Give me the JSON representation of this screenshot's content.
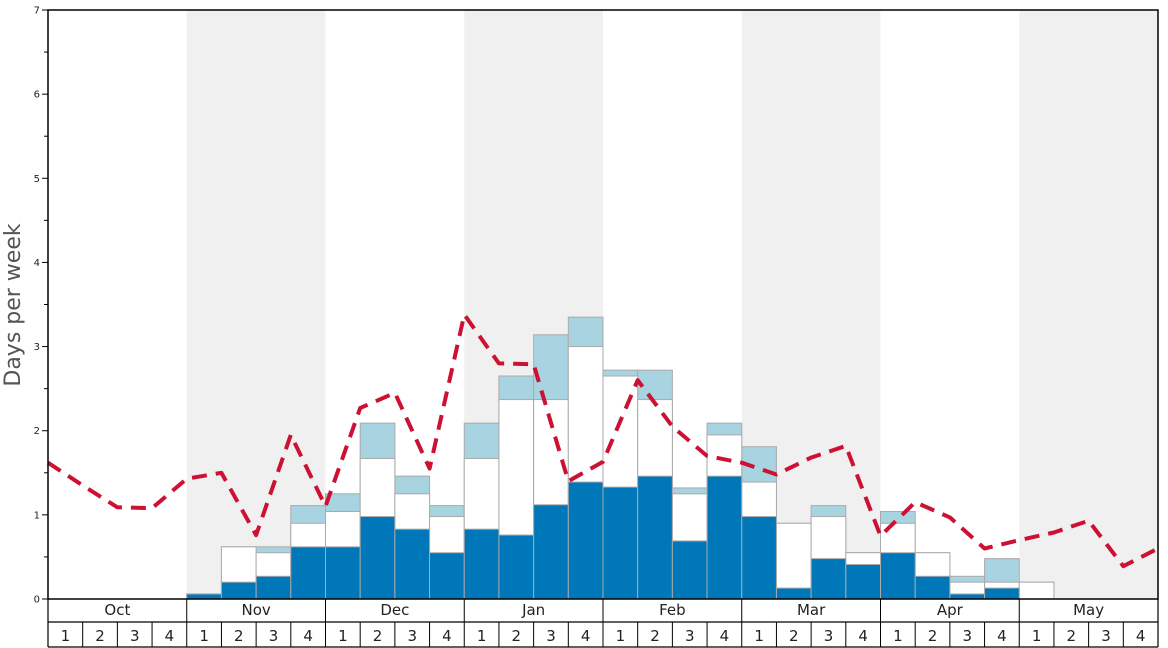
{
  "chart_data": {
    "type": "bar",
    "ylabel": "Days per week",
    "ylim": [
      0,
      7
    ],
    "yticks": [
      0,
      1,
      2,
      3,
      4,
      5,
      6,
      7
    ],
    "months": [
      "Oct",
      "Nov",
      "Dec",
      "Jan",
      "Feb",
      "Mar",
      "Apr",
      "May"
    ],
    "week_labels": [
      "1",
      "2",
      "3",
      "4"
    ],
    "shaded_months": [
      "Nov",
      "Jan",
      "Mar",
      "May"
    ],
    "colors": {
      "bottom": "#0077b8",
      "middle": "#ffffff",
      "top": "#a8d3e0",
      "line": "#cc1133",
      "band": "#f0f0f0",
      "bar_edge": "#aaaaaa"
    },
    "series": [
      {
        "stack": "bottom",
        "values": [
          0,
          0,
          0,
          0,
          0.06,
          0.2,
          0.27,
          0.62,
          0.62,
          0.98,
          0.83,
          0.55,
          0.83,
          0.76,
          1.12,
          1.39,
          1.33,
          1.46,
          0.69,
          1.46,
          0.98,
          0.13,
          0.48,
          0.41,
          0.55,
          0.27,
          0.06,
          0.13,
          0,
          0,
          0,
          0
        ]
      },
      {
        "stack": "middle",
        "values": [
          0,
          0,
          0,
          0,
          0.06,
          0.62,
          0.55,
          0.9,
          1.04,
          1.67,
          1.25,
          0.98,
          1.67,
          2.37,
          2.37,
          3.0,
          2.65,
          2.37,
          1.25,
          1.95,
          1.39,
          0.9,
          0.98,
          0.55,
          0.9,
          0.55,
          0.2,
          0.2,
          0.2,
          0,
          0,
          0
        ]
      },
      {
        "stack": "top",
        "values": [
          0,
          0,
          0,
          0,
          0.06,
          0.62,
          0.62,
          1.11,
          1.25,
          2.09,
          1.46,
          1.11,
          2.09,
          2.65,
          3.14,
          3.35,
          2.72,
          2.72,
          1.32,
          2.09,
          1.81,
          0.9,
          1.11,
          0.55,
          1.04,
          0.55,
          0.27,
          0.48,
          0.2,
          0,
          0,
          0
        ]
      },
      {
        "type": "line",
        "values": [
          1.62,
          1.35,
          1.09,
          1.08,
          1.43,
          1.5,
          0.76,
          1.95,
          1.1,
          2.27,
          2.45,
          1.55,
          3.38,
          2.8,
          2.79,
          1.4,
          1.63,
          2.6,
          2.05,
          1.7,
          1.62,
          1.48,
          1.68,
          1.82,
          0.75,
          1.15,
          0.97,
          0.6,
          0.7,
          0.79,
          0.93,
          0.39,
          0.6
        ]
      }
    ]
  }
}
